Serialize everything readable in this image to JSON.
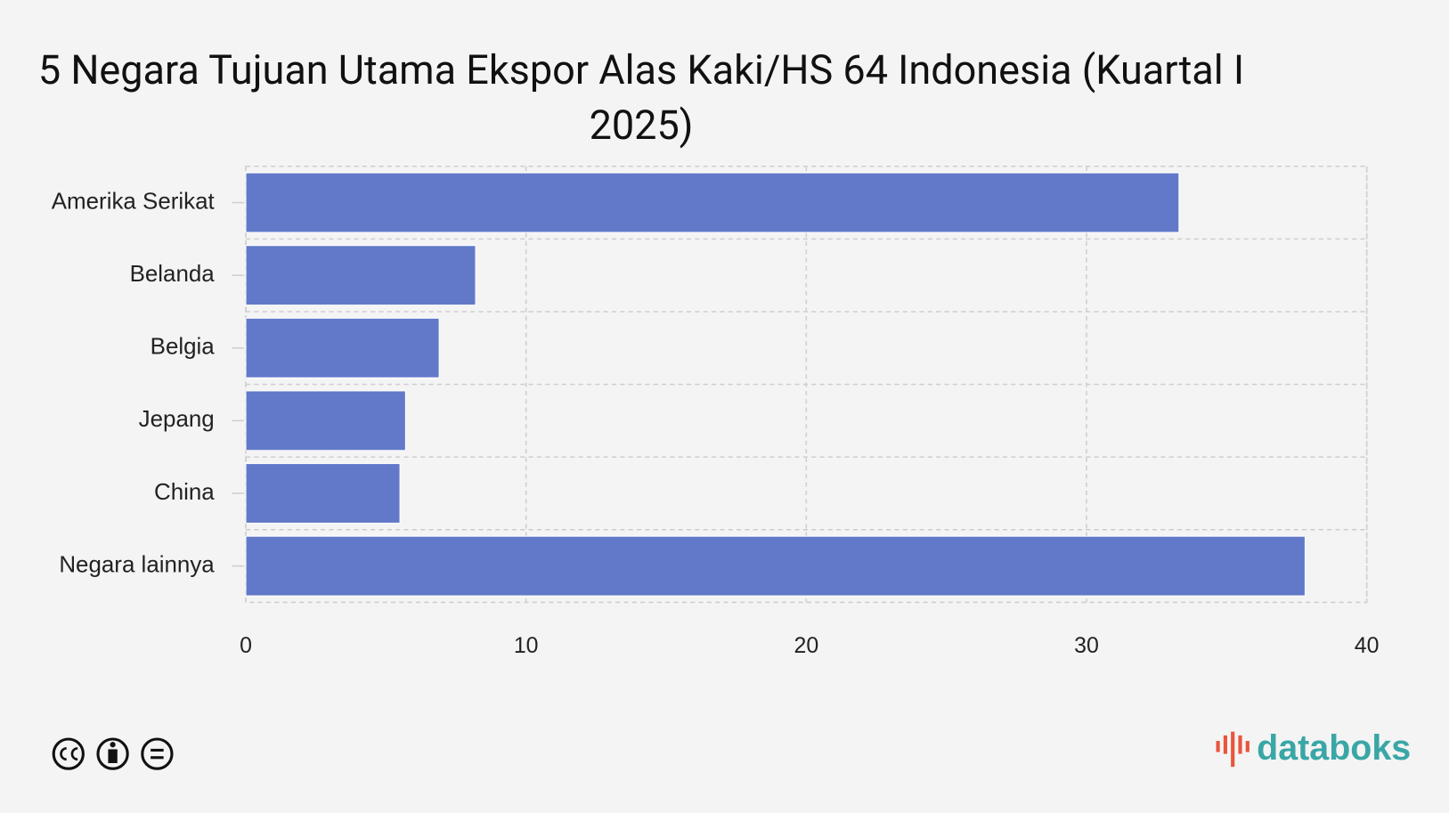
{
  "chart_data": {
    "type": "bar",
    "orientation": "horizontal",
    "title": "5 Negara Tujuan Utama Ekspor Alas Kaki/HS 64 Indonesia (Kuartal I 2025)",
    "categories": [
      "Amerika Serikat",
      "Belanda",
      "Belgia",
      "Jepang",
      "China",
      "Negara lainnya"
    ],
    "values": [
      33.3,
      8.2,
      6.9,
      5.7,
      5.5,
      37.8
    ],
    "color": "#6279c9",
    "xlim": [
      0,
      40
    ],
    "xticks": [
      0,
      10,
      20,
      30,
      40
    ],
    "grid": true
  },
  "logo": "databoks"
}
